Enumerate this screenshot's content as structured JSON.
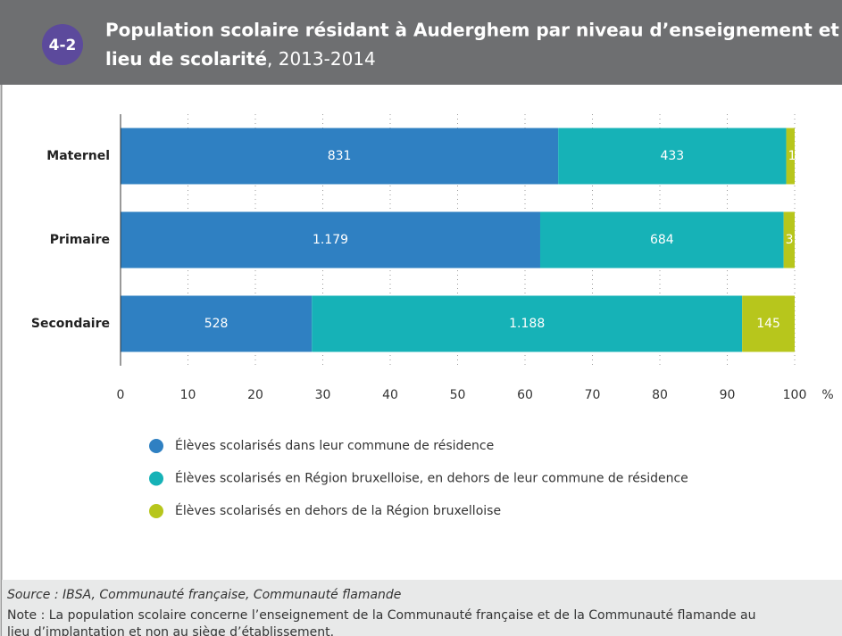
{
  "chart_data": {
    "type": "bar",
    "orientation": "horizontal",
    "stacking": "percent",
    "badge": "4-2",
    "title_lines": [
      "Population scolaire résidant à Auderghem par niveau d’enseignement et",
      "lieu de scolarité"
    ],
    "subtitle": ", 2013-2014",
    "categories": [
      "Maternel",
      "Primaire",
      "Secondaire"
    ],
    "series": [
      {
        "name": "Élèves scolarisés dans leur commune de résidence",
        "color": "#2f80c2",
        "values": [
          831,
          1179,
          528
        ],
        "value_labels": [
          "831",
          "1.179",
          "528"
        ]
      },
      {
        "name": "Élèves scolarisés en Région bruxelloise, en dehors de leur commune de résidence",
        "color": "#16b2b7",
        "values": [
          433,
          684,
          1188
        ],
        "value_labels": [
          "433",
          "684",
          "1.188"
        ]
      },
      {
        "name": "Élèves scolarisés en dehors de la Région bruxelloise",
        "color": "#b7c61c",
        "values": [
          16,
          31,
          145
        ]
      }
    ],
    "xlim": [
      0,
      100
    ],
    "xticks": [
      0,
      10,
      20,
      30,
      40,
      50,
      60,
      70,
      80,
      90,
      100
    ],
    "x_unit": "%",
    "grid": true,
    "source": "Source : IBSA, Communauté française, Communauté flamande",
    "note_lines": [
      "Note : La population scolaire concerne l’enseignement de la Communauté française et de la Communauté flamande au",
      "lieu d’implantation et non au siège d’établissement."
    ]
  }
}
